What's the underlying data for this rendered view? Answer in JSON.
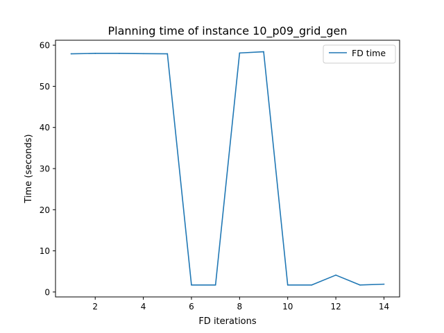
{
  "chart_data": {
    "type": "line",
    "title": "Planning time of instance 10_p09_grid_gen",
    "xlabel": "FD iterations",
    "ylabel": "Time (seconds)",
    "xlim": [
      0.35,
      14.65
    ],
    "ylim": [
      -1.2,
      61.2
    ],
    "xticks": [
      2,
      4,
      6,
      8,
      10,
      12,
      14
    ],
    "yticks": [
      0,
      10,
      20,
      30,
      40,
      50,
      60
    ],
    "grid": false,
    "legend_position": "top-right",
    "series": [
      {
        "name": "FD time",
        "color": "#1f77b4",
        "x": [
          1,
          2,
          3,
          4,
          5,
          6,
          7,
          8,
          9,
          10,
          11,
          12,
          13,
          14
        ],
        "y": [
          57.9,
          58.0,
          58.0,
          57.95,
          57.9,
          1.7,
          1.7,
          58.1,
          58.4,
          1.7,
          1.7,
          4.1,
          1.7,
          1.9
        ]
      }
    ]
  }
}
